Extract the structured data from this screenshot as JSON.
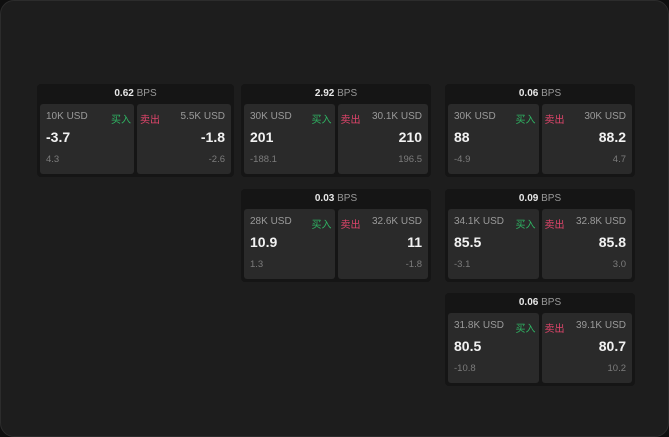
{
  "labels": {
    "buy": "买入",
    "sell": "卖出",
    "unit": "BPS"
  },
  "colors": {
    "buy": "#2fb463",
    "sell": "#e0456b"
  },
  "cards": [
    {
      "spread": "0.62",
      "bid": {
        "size": "10K USD",
        "price": "-3.7",
        "change": "4.3"
      },
      "ask": {
        "size": "5.5K USD",
        "price": "-1.8",
        "change": "-2.6"
      }
    },
    {
      "spread": "2.92",
      "bid": {
        "size": "30K USD",
        "price": "201",
        "change": "-188.1"
      },
      "ask": {
        "size": "30.1K USD",
        "price": "210",
        "change": "196.5"
      }
    },
    {
      "spread": "0.06",
      "bid": {
        "size": "30K USD",
        "price": "88",
        "change": "-4.9"
      },
      "ask": {
        "size": "30K USD",
        "price": "88.2",
        "change": "4.7"
      }
    },
    {
      "spread": "0.03",
      "bid": {
        "size": "28K USD",
        "price": "10.9",
        "change": "1.3"
      },
      "ask": {
        "size": "32.6K USD",
        "price": "11",
        "change": "-1.8"
      }
    },
    {
      "spread": "0.09",
      "bid": {
        "size": "34.1K USD",
        "price": "85.5",
        "change": "-3.1"
      },
      "ask": {
        "size": "32.8K USD",
        "price": "85.8",
        "change": "3.0"
      }
    },
    {
      "spread": "0.06",
      "bid": {
        "size": "31.8K USD",
        "price": "80.5",
        "change": "-10.8"
      },
      "ask": {
        "size": "39.1K USD",
        "price": "80.7",
        "change": "10.2"
      }
    }
  ]
}
